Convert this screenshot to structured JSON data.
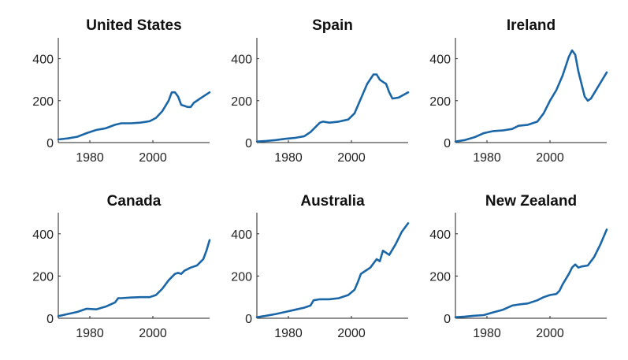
{
  "chart_data": [
    {
      "type": "line",
      "title": "United States",
      "xlim": [
        1970,
        2018
      ],
      "ylim": [
        0,
        500
      ],
      "xticks": [
        1980,
        2000
      ],
      "yticks": [
        0,
        200,
        400
      ],
      "color": "#1a66a6",
      "x": [
        1970,
        1973,
        1976,
        1979,
        1982,
        1985,
        1988,
        1990,
        1993,
        1996,
        1999,
        2001,
        2003,
        2005,
        2006,
        2007,
        2008,
        2009,
        2010,
        2011,
        2012,
        2013,
        2015,
        2018
      ],
      "y": [
        15,
        20,
        28,
        45,
        60,
        68,
        85,
        92,
        92,
        95,
        102,
        118,
        150,
        200,
        240,
        240,
        220,
        180,
        175,
        170,
        170,
        190,
        210,
        240
      ]
    },
    {
      "type": "line",
      "title": "Spain",
      "xlim": [
        1970,
        2018
      ],
      "ylim": [
        0,
        500
      ],
      "xticks": [
        1980,
        2000
      ],
      "yticks": [
        0,
        200,
        400
      ],
      "color": "#1a66a6",
      "x": [
        1970,
        1973,
        1976,
        1979,
        1982,
        1985,
        1987,
        1990,
        1991,
        1993,
        1996,
        1999,
        2001,
        2003,
        2005,
        2007,
        2008,
        2009,
        2010,
        2011,
        2012,
        2013,
        2015,
        2018
      ],
      "y": [
        5,
        8,
        12,
        18,
        22,
        30,
        50,
        95,
        100,
        95,
        100,
        110,
        140,
        210,
        280,
        325,
        325,
        300,
        290,
        280,
        240,
        210,
        215,
        240
      ]
    },
    {
      "type": "line",
      "title": "Ireland",
      "xlim": [
        1970,
        2018
      ],
      "ylim": [
        0,
        500
      ],
      "xticks": [
        1980,
        2000
      ],
      "yticks": [
        0,
        200,
        400
      ],
      "color": "#1a66a6",
      "x": [
        1970,
        1973,
        1976,
        1979,
        1982,
        1985,
        1988,
        1990,
        1993,
        1996,
        1998,
        2000,
        2002,
        2004,
        2006,
        2007,
        2008,
        2009,
        2010,
        2011,
        2012,
        2013,
        2015,
        2018
      ],
      "y": [
        5,
        12,
        25,
        45,
        55,
        58,
        65,
        80,
        85,
        100,
        140,
        200,
        250,
        320,
        410,
        440,
        420,
        340,
        280,
        220,
        200,
        210,
        260,
        335
      ]
    },
    {
      "type": "line",
      "title": "Canada",
      "xlim": [
        1970,
        2018
      ],
      "ylim": [
        0,
        500
      ],
      "xticks": [
        1980,
        2000
      ],
      "yticks": [
        0,
        200,
        400
      ],
      "color": "#1a66a6",
      "x": [
        1970,
        1973,
        1976,
        1979,
        1982,
        1985,
        1988,
        1989,
        1990,
        1993,
        1996,
        1999,
        2001,
        2003,
        2005,
        2007,
        2008,
        2009,
        2010,
        2012,
        2014,
        2016,
        2017,
        2018
      ],
      "y": [
        10,
        20,
        30,
        45,
        42,
        55,
        75,
        95,
        95,
        98,
        100,
        100,
        110,
        140,
        180,
        210,
        215,
        210,
        225,
        240,
        250,
        280,
        320,
        370
      ]
    },
    {
      "type": "line",
      "title": "Australia",
      "xlim": [
        1970,
        2018
      ],
      "ylim": [
        0,
        500
      ],
      "xticks": [
        1980,
        2000
      ],
      "yticks": [
        0,
        200,
        400
      ],
      "color": "#1a66a6",
      "x": [
        1970,
        1973,
        1976,
        1979,
        1982,
        1985,
        1987,
        1988,
        1990,
        1993,
        1996,
        1999,
        2001,
        2002,
        2003,
        2004,
        2006,
        2008,
        2009,
        2010,
        2012,
        2014,
        2016,
        2018
      ],
      "y": [
        5,
        12,
        20,
        30,
        40,
        50,
        60,
        85,
        90,
        90,
        95,
        110,
        135,
        170,
        210,
        220,
        240,
        280,
        270,
        320,
        300,
        350,
        410,
        450
      ]
    },
    {
      "type": "line",
      "title": "New Zealand",
      "xlim": [
        1970,
        2018
      ],
      "ylim": [
        0,
        500
      ],
      "xticks": [
        1980,
        2000
      ],
      "yticks": [
        0,
        200,
        400
      ],
      "color": "#1a66a6",
      "x": [
        1970,
        1973,
        1976,
        1979,
        1982,
        1985,
        1988,
        1990,
        1993,
        1996,
        1998,
        2000,
        2002,
        2003,
        2004,
        2006,
        2007,
        2008,
        2009,
        2010,
        2012,
        2014,
        2016,
        2018
      ],
      "y": [
        5,
        8,
        12,
        15,
        28,
        40,
        60,
        65,
        70,
        85,
        100,
        110,
        115,
        130,
        160,
        210,
        240,
        255,
        240,
        245,
        250,
        290,
        350,
        420
      ]
    }
  ]
}
